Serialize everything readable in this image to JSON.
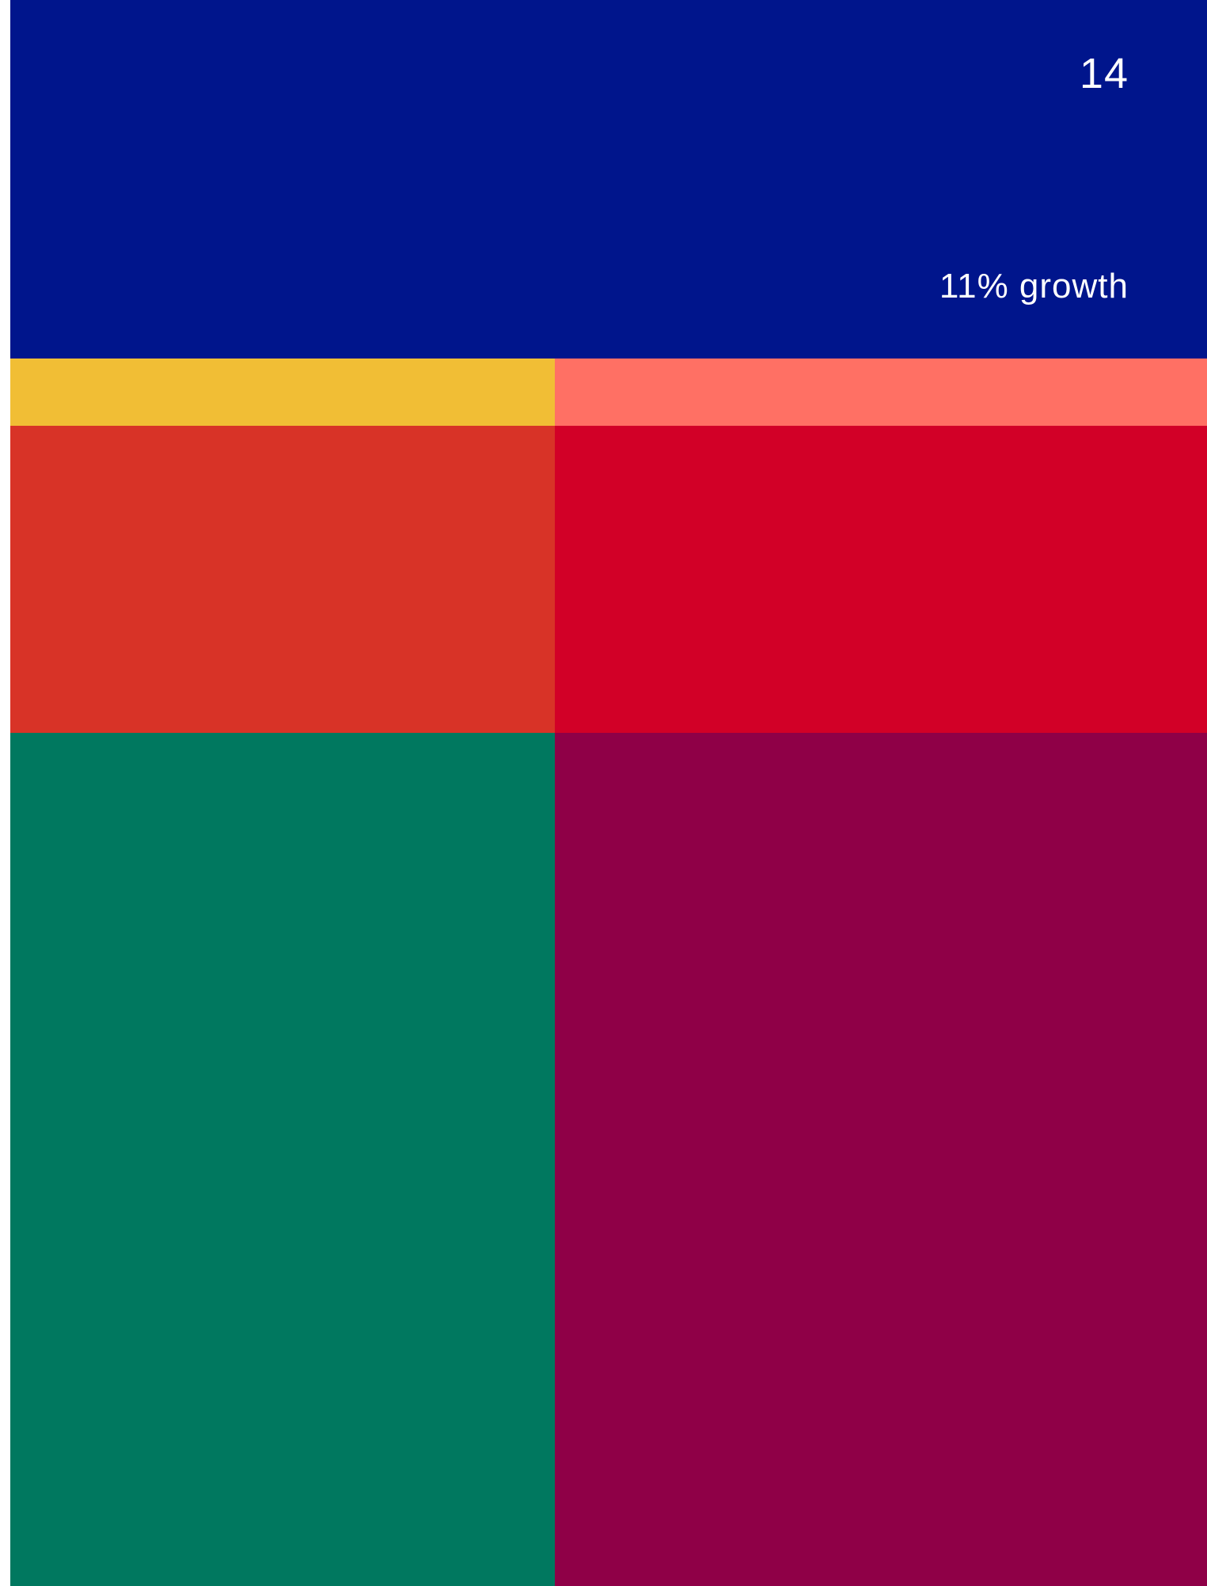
{
  "header": {
    "page_number": "14",
    "growth_label": "11% growth"
  },
  "colors": {
    "header_bg": "#00158c",
    "yellow": "#f1be35",
    "salmon": "#ff7064",
    "orange_red": "#d83327",
    "red": "#d20027",
    "green": "#00785f",
    "maroon": "#8f0047",
    "text": "#ffffff"
  }
}
